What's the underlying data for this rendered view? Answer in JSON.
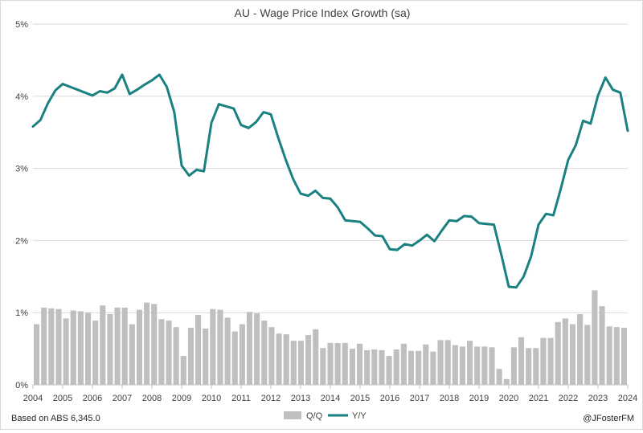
{
  "chart_data": {
    "type": "bar+line",
    "title": "AU - Wage Price Index Growth (sa)",
    "xlabel": "",
    "ylabel": "",
    "ylim": [
      0,
      5
    ],
    "y_ticks": [
      "0%",
      "1%",
      "2%",
      "3%",
      "4%",
      "5%"
    ],
    "x_ticks": [
      "2004",
      "2005",
      "2006",
      "2007",
      "2008",
      "2009",
      "2010",
      "2011",
      "2012",
      "2013",
      "2014",
      "2015",
      "2016",
      "2017",
      "2018",
      "2019",
      "2020",
      "2021",
      "2022",
      "2023",
      "2024"
    ],
    "x_start_year": 2004,
    "x_end_year": 2024,
    "grid": true,
    "legend_position": "bottom",
    "series": [
      {
        "name": "Q/Q",
        "type": "bar",
        "color": "#bfbfbf",
        "values": [
          0.84,
          1.07,
          1.06,
          1.05,
          0.92,
          1.03,
          1.02,
          1.0,
          0.89,
          1.1,
          0.98,
          1.07,
          1.07,
          0.84,
          1.04,
          1.14,
          1.12,
          0.91,
          0.89,
          0.8,
          0.4,
          0.79,
          0.97,
          0.78,
          1.05,
          1.04,
          0.93,
          0.74,
          0.84,
          1.01,
          0.99,
          0.89,
          0.8,
          0.71,
          0.7,
          0.61,
          0.61,
          0.69,
          0.77,
          0.51,
          0.58,
          0.58,
          0.58,
          0.5,
          0.57,
          0.48,
          0.49,
          0.48,
          0.4,
          0.49,
          0.57,
          0.47,
          0.47,
          0.56,
          0.46,
          0.62,
          0.62,
          0.55,
          0.53,
          0.61,
          0.53,
          0.53,
          0.52,
          0.22,
          0.08,
          0.52,
          0.66,
          0.51,
          0.51,
          0.65,
          0.65,
          0.87,
          0.92,
          0.84,
          0.98,
          0.83,
          1.31,
          1.09,
          0.81,
          0.8,
          0.79
        ]
      },
      {
        "name": "Y/Y",
        "type": "line",
        "color": "#1a8080",
        "values": [
          3.58,
          3.67,
          3.9,
          4.08,
          4.17,
          4.13,
          4.09,
          4.05,
          4.01,
          4.07,
          4.05,
          4.11,
          4.3,
          4.03,
          4.09,
          4.16,
          4.22,
          4.3,
          4.13,
          3.78,
          3.04,
          2.9,
          2.98,
          2.96,
          3.63,
          3.89,
          3.86,
          3.83,
          3.6,
          3.56,
          3.64,
          3.78,
          3.75,
          3.42,
          3.12,
          2.85,
          2.65,
          2.62,
          2.69,
          2.59,
          2.58,
          2.46,
          2.28,
          2.27,
          2.26,
          2.17,
          2.07,
          2.06,
          1.88,
          1.87,
          1.95,
          1.93,
          2.0,
          2.08,
          1.99,
          2.14,
          2.28,
          2.27,
          2.34,
          2.33,
          2.24,
          2.23,
          2.22,
          1.8,
          1.36,
          1.35,
          1.5,
          1.78,
          2.22,
          2.37,
          2.35,
          2.72,
          3.12,
          3.32,
          3.66,
          3.62,
          4.01,
          4.26,
          4.09,
          4.05,
          3.52
        ]
      }
    ]
  },
  "footer": {
    "source_note": "Based on ABS 6,345.0",
    "credit": "@JFosterFM"
  }
}
